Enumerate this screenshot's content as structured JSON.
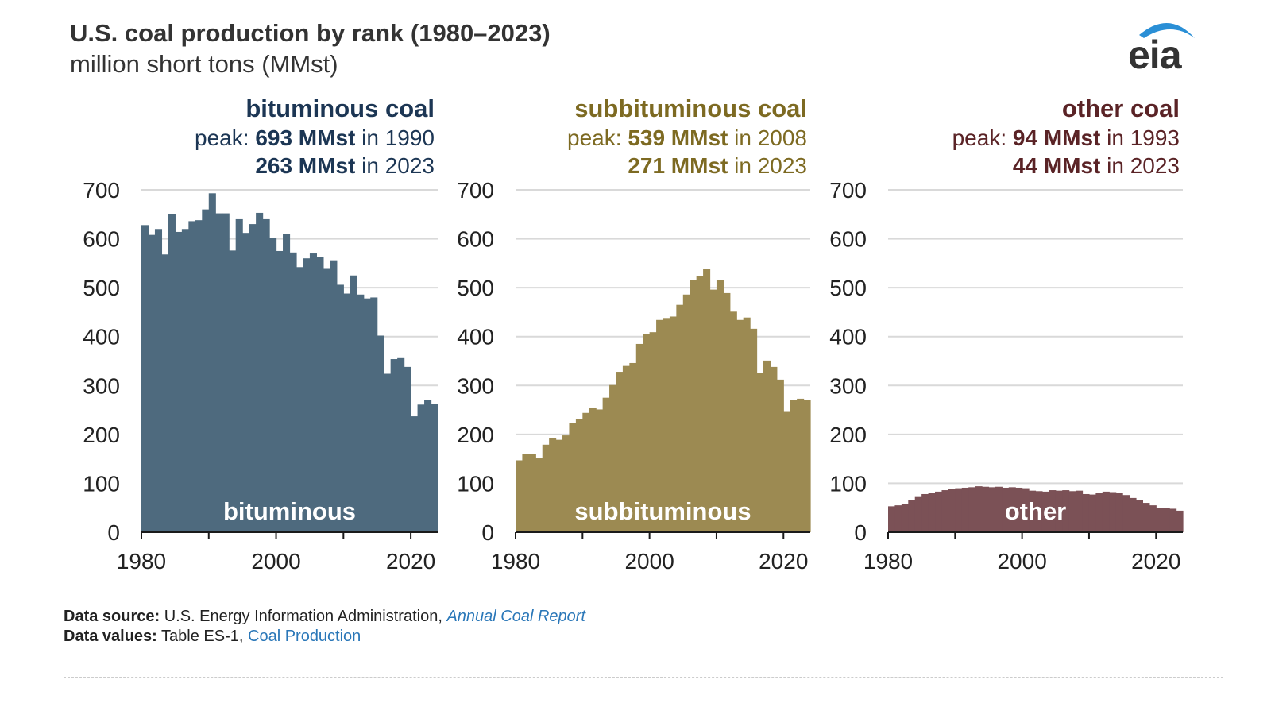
{
  "header": {
    "title": "U.S. coal production by rank (1980–2023)",
    "subtitle": "million short tons (MMst)",
    "logo_text": "eia"
  },
  "footer": {
    "source_label": "Data source:",
    "source_text": "U.S. Energy Information Administration,",
    "source_link": "Annual Coal Report",
    "values_label": "Data values:",
    "values_text": "Table ES-1,",
    "values_link": "Coal Production"
  },
  "colors": {
    "bituminous": "#4e6a7e",
    "bituminous_text": "#1c3654",
    "subbituminous": "#9c8a52",
    "subbituminous_text": "#7d6a22",
    "other": "#7b5156",
    "other_text": "#5a2326",
    "grid": "#d9d9d9",
    "axis": "#1a1a1a"
  },
  "chart_data": [
    {
      "type": "bar",
      "key": "bituminous",
      "title": "bituminous coal",
      "peak_prefix": "peak:",
      "peak_value": "693 MMst",
      "peak_suffix": "in 1990",
      "latest_value": "263 MMst",
      "latest_suffix": "in 2023",
      "inner_label": "bituminous",
      "ylim": [
        0,
        700
      ],
      "yticks": [
        "0",
        "100",
        "200",
        "300",
        "400",
        "500",
        "600",
        "700"
      ],
      "xticks": [
        "1980",
        "2000",
        "2020"
      ],
      "x": [
        1980,
        1981,
        1982,
        1983,
        1984,
        1985,
        1986,
        1987,
        1988,
        1989,
        1990,
        1991,
        1992,
        1993,
        1994,
        1995,
        1996,
        1997,
        1998,
        1999,
        2000,
        2001,
        2002,
        2003,
        2004,
        2005,
        2006,
        2007,
        2008,
        2009,
        2010,
        2011,
        2012,
        2013,
        2014,
        2015,
        2016,
        2017,
        2018,
        2019,
        2020,
        2021,
        2022,
        2023
      ],
      "values": [
        628,
        608,
        620,
        568,
        650,
        614,
        620,
        636,
        638,
        660,
        693,
        652,
        652,
        576,
        640,
        612,
        630,
        653,
        640,
        602,
        575,
        610,
        572,
        542,
        560,
        570,
        562,
        540,
        556,
        506,
        488,
        525,
        486,
        478,
        480,
        402,
        324,
        354,
        356,
        338,
        237,
        261,
        270,
        263
      ]
    },
    {
      "type": "bar",
      "key": "subbituminous",
      "title": "subbituminous coal",
      "peak_prefix": "peak:",
      "peak_value": "539 MMst",
      "peak_suffix": "in 2008",
      "latest_value": "271 MMst",
      "latest_suffix": "in 2023",
      "inner_label": "subbituminous",
      "ylim": [
        0,
        700
      ],
      "yticks": [
        "0",
        "100",
        "200",
        "300",
        "400",
        "500",
        "600",
        "700"
      ],
      "xticks": [
        "1980",
        "2000",
        "2020"
      ],
      "x": [
        1980,
        1981,
        1982,
        1983,
        1984,
        1985,
        1986,
        1987,
        1988,
        1989,
        1990,
        1991,
        1992,
        1993,
        1994,
        1995,
        1996,
        1997,
        1998,
        1999,
        2000,
        2001,
        2002,
        2003,
        2004,
        2005,
        2006,
        2007,
        2008,
        2009,
        2010,
        2011,
        2012,
        2013,
        2014,
        2015,
        2016,
        2017,
        2018,
        2019,
        2020,
        2021,
        2022,
        2023
      ],
      "values": [
        147,
        160,
        160,
        151,
        179,
        192,
        189,
        198,
        223,
        231,
        244,
        255,
        251,
        275,
        301,
        328,
        340,
        346,
        385,
        406,
        409,
        434,
        438,
        441,
        465,
        486,
        515,
        523,
        539,
        496,
        515,
        489,
        451,
        434,
        439,
        416,
        326,
        351,
        338,
        312,
        246,
        271,
        273,
        271
      ]
    },
    {
      "type": "bar",
      "key": "other",
      "title": "other coal",
      "peak_prefix": "peak:",
      "peak_value": "94 MMst",
      "peak_suffix": "in 1993",
      "latest_value": "44 MMst",
      "latest_suffix": "in 2023",
      "inner_label": "other",
      "ylim": [
        0,
        700
      ],
      "yticks": [
        "0",
        "100",
        "200",
        "300",
        "400",
        "500",
        "600",
        "700"
      ],
      "xticks": [
        "1980",
        "2000",
        "2020"
      ],
      "x": [
        1980,
        1981,
        1982,
        1983,
        1984,
        1985,
        1986,
        1987,
        1988,
        1989,
        1990,
        1991,
        1992,
        1993,
        1994,
        1995,
        1996,
        1997,
        1998,
        1999,
        2000,
        2001,
        2002,
        2003,
        2004,
        2005,
        2006,
        2007,
        2008,
        2009,
        2010,
        2011,
        2012,
        2013,
        2014,
        2015,
        2016,
        2017,
        2018,
        2019,
        2020,
        2021,
        2022,
        2023
      ],
      "values": [
        53,
        55,
        58,
        65,
        72,
        78,
        80,
        83,
        86,
        88,
        90,
        91,
        92,
        94,
        93,
        92,
        93,
        91,
        92,
        91,
        90,
        85,
        84,
        83,
        86,
        85,
        86,
        84,
        85,
        78,
        77,
        80,
        83,
        82,
        80,
        76,
        70,
        66,
        60,
        55,
        50,
        49,
        48,
        44
      ]
    }
  ]
}
